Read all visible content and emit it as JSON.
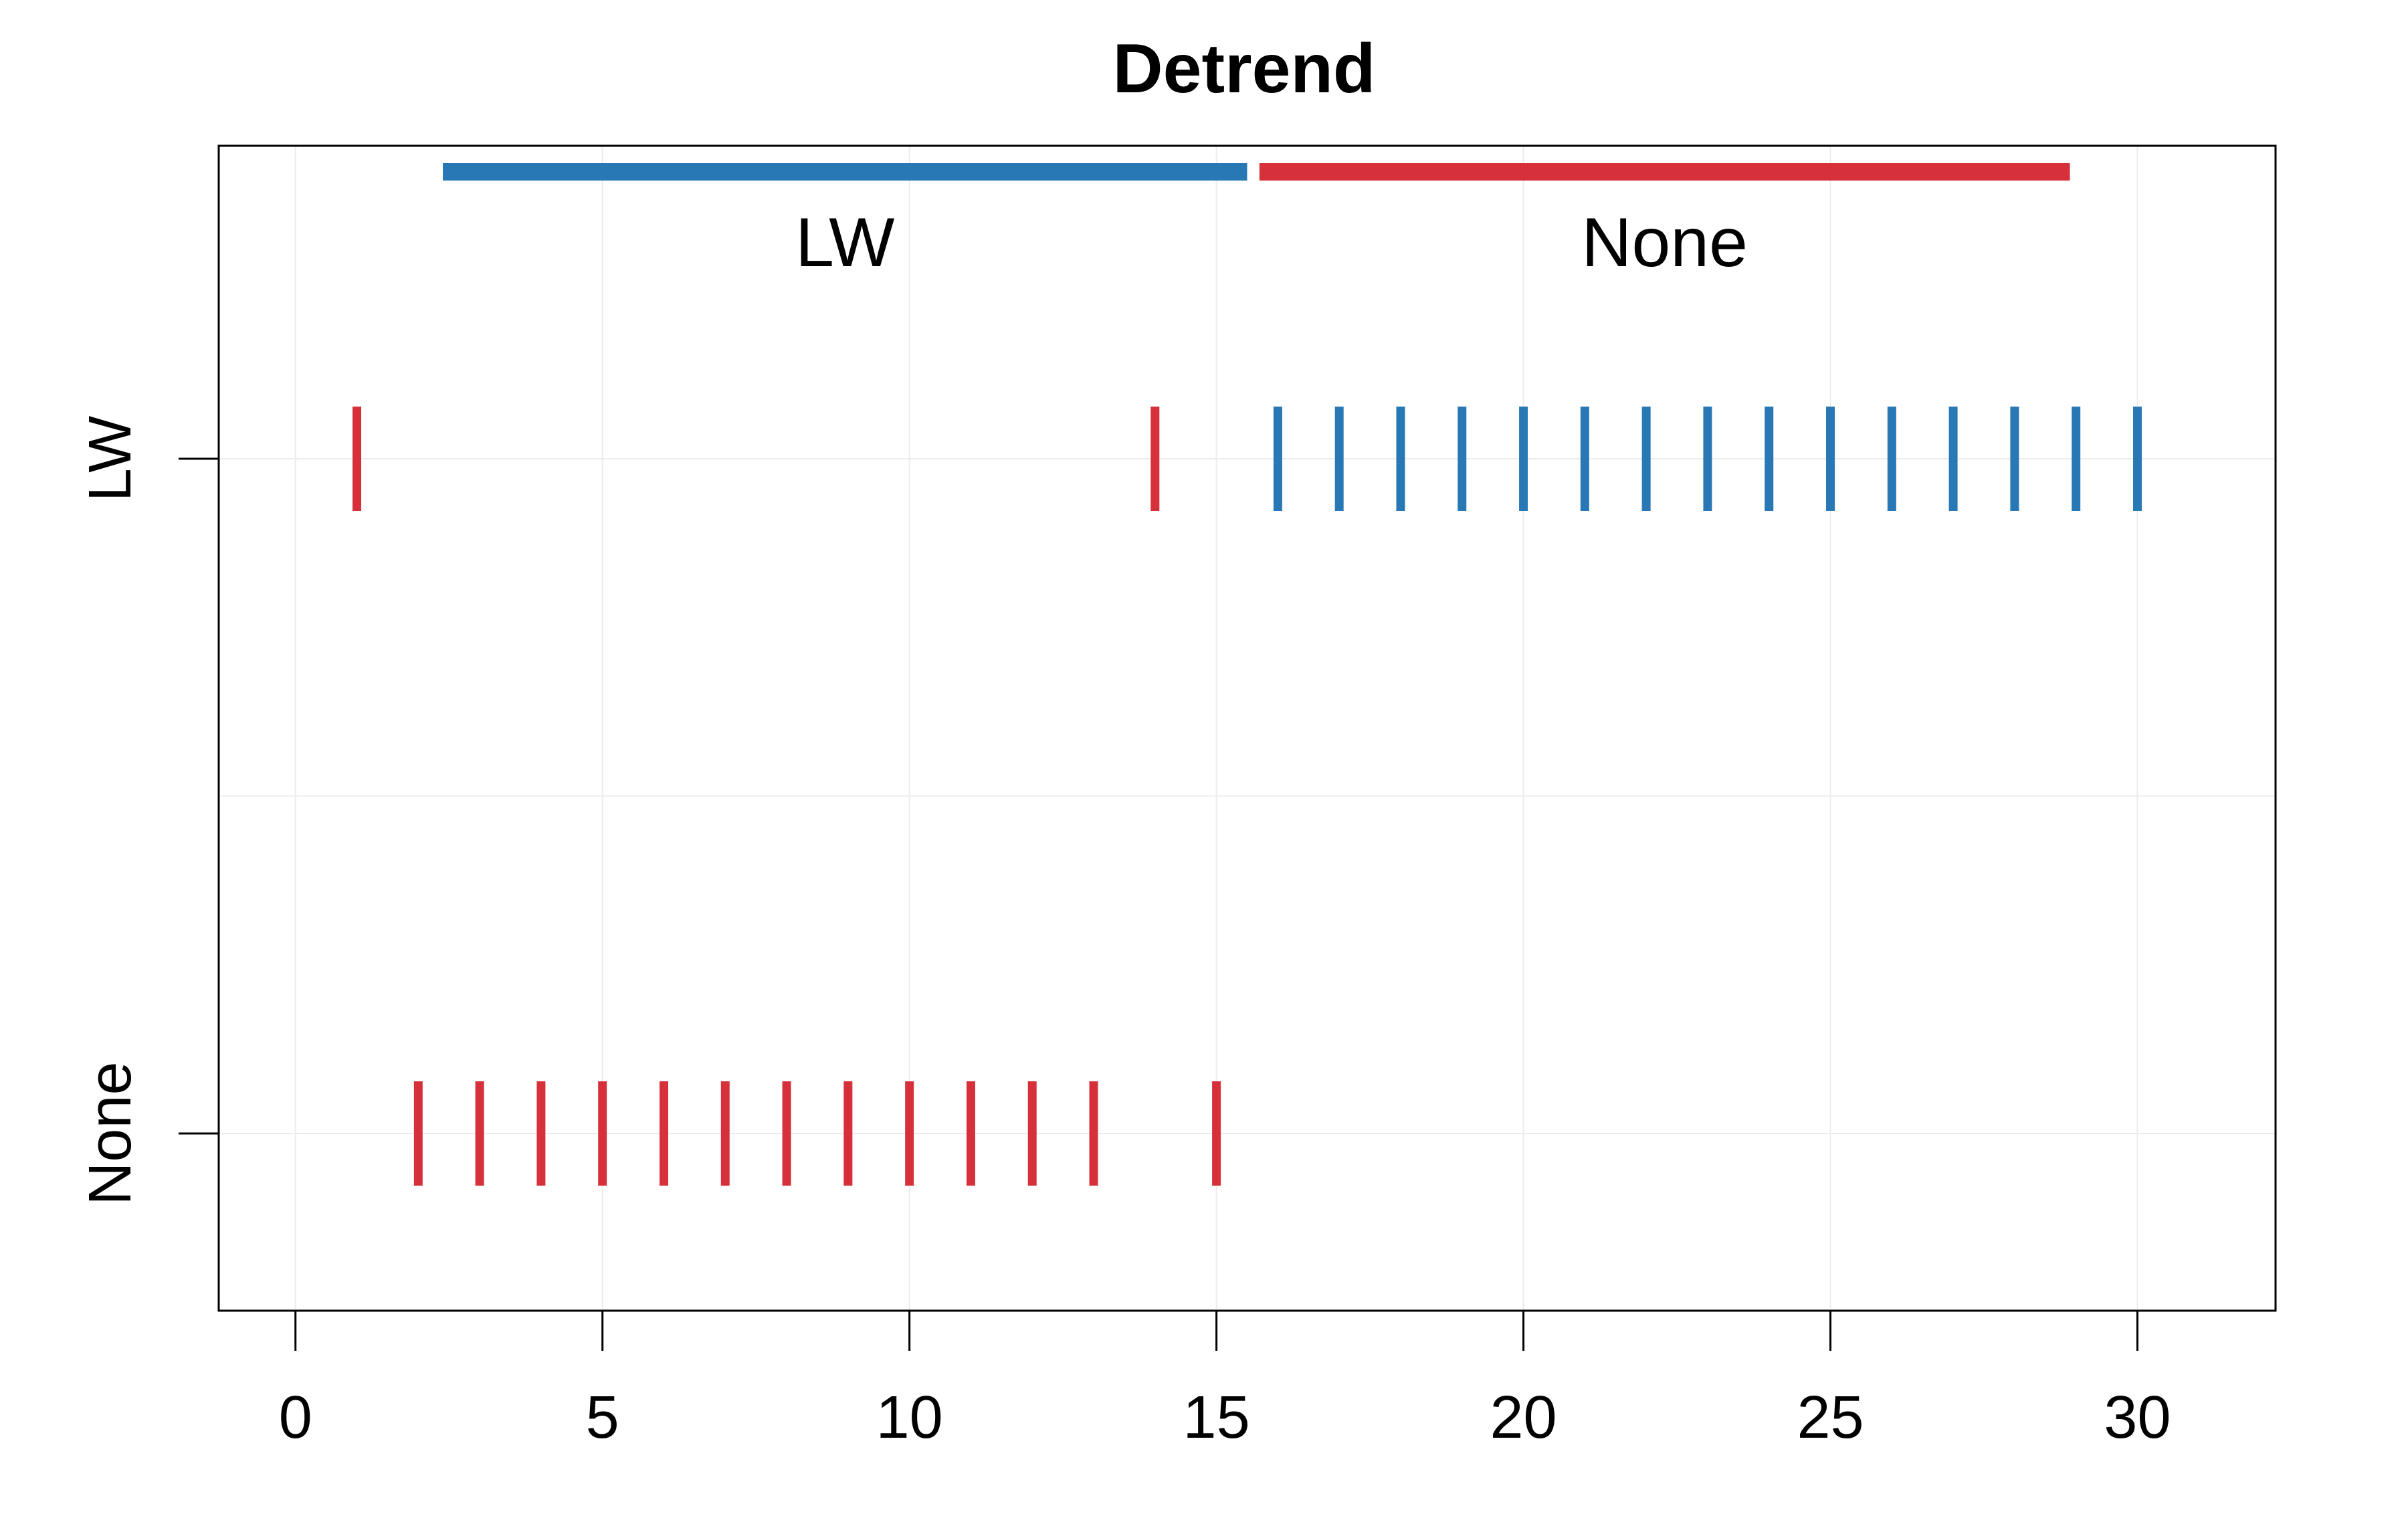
{
  "chart_data": {
    "type": "event-raster",
    "title": "Detrend",
    "xlabel": "",
    "ylabel": "",
    "xlim": [
      -1.25,
      32.25
    ],
    "x_ticks": [
      0,
      5,
      10,
      15,
      20,
      25,
      30
    ],
    "y_categories": [
      "LW",
      "None"
    ],
    "grid": true,
    "colors": {
      "LW": "#2878b5",
      "None": "#d6313a"
    },
    "segments": [
      {
        "label": "LW",
        "from": 2.4,
        "to": 15.5,
        "group": "LW"
      },
      {
        "label": "None",
        "from": 15.7,
        "to": 28.9,
        "group": "None"
      }
    ],
    "series": [
      {
        "row": "LW",
        "group": "None",
        "x": [
          1,
          14
        ]
      },
      {
        "row": "LW",
        "group": "LW",
        "x": [
          16,
          17,
          18,
          19,
          20,
          21,
          22,
          23,
          24,
          25,
          26,
          27,
          28,
          29,
          30
        ]
      },
      {
        "row": "None",
        "group": "None",
        "x": [
          2,
          3,
          4,
          5,
          6,
          7,
          8,
          9,
          10,
          11,
          12,
          13,
          15
        ]
      }
    ]
  }
}
